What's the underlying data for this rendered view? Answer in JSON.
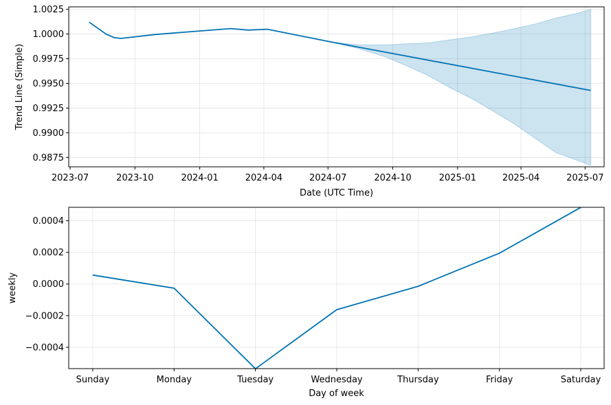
{
  "chart_data": [
    {
      "type": "line",
      "title": "",
      "xlabel": "Date (UTC Time)",
      "ylabel": "Trend Line (Simple)",
      "xlim": [
        "2023-06-29",
        "2025-07-28"
      ],
      "ylim": [
        0.98655,
        1.00275
      ],
      "xticks": [
        "2023-07-01",
        "2023-10-01",
        "2024-01-01",
        "2024-04-01",
        "2024-07-01",
        "2024-10-01",
        "2025-01-01",
        "2025-04-01",
        "2025-07-01"
      ],
      "xtick_labels": [
        "2023-07",
        "2023-10",
        "2024-01",
        "2024-04",
        "2024-07",
        "2024-10",
        "2025-01",
        "2025-04",
        "2025-07"
      ],
      "yticks": [
        0.9875,
        0.99,
        0.9925,
        0.995,
        0.9975,
        1.0,
        1.0025
      ],
      "ytick_labels": [
        "0.9875",
        "0.9900",
        "0.9925",
        "0.9950",
        "0.9975",
        "1.0000",
        "1.0025"
      ],
      "grid": true,
      "series": [
        {
          "color": "#0072B2",
          "points": [
            [
              "2023-07-28",
              1.0012
            ],
            [
              "2023-08-21",
              1.0
            ],
            [
              "2023-09-01",
              0.99965
            ],
            [
              "2023-09-11",
              0.99955
            ],
            [
              "2023-10-29",
              0.99995
            ],
            [
              "2024-02-14",
              1.00055
            ],
            [
              "2024-03-10",
              1.0004
            ],
            [
              "2024-04-06",
              1.00048
            ],
            [
              "2024-07-06",
              0.99918
            ],
            [
              "2025-07-09",
              0.99428
            ]
          ]
        }
      ],
      "band": {
        "color": "#0072B2",
        "upper": [
          [
            "2024-07-06",
            0.99918
          ],
          [
            "2024-08-15",
            0.9989
          ],
          [
            "2024-09-20",
            0.9989
          ],
          [
            "2024-10-20",
            0.999
          ],
          [
            "2024-11-20",
            0.9991
          ],
          [
            "2024-12-20",
            0.9994
          ],
          [
            "2025-01-20",
            0.9997
          ],
          [
            "2025-02-20",
            1.0001
          ],
          [
            "2025-03-20",
            1.0005
          ],
          [
            "2025-04-20",
            1.001
          ],
          [
            "2025-05-20",
            1.0016
          ],
          [
            "2025-06-20",
            1.0021
          ],
          [
            "2025-07-09",
            1.0025
          ]
        ],
        "lower": [
          [
            "2024-07-06",
            0.99918
          ],
          [
            "2024-08-15",
            0.9985
          ],
          [
            "2024-09-20",
            0.9977
          ],
          [
            "2024-10-20",
            0.9968
          ],
          [
            "2024-11-20",
            0.9958
          ],
          [
            "2024-12-20",
            0.9946
          ],
          [
            "2025-01-20",
            0.9935
          ],
          [
            "2025-02-20",
            0.9922
          ],
          [
            "2025-03-20",
            0.991
          ],
          [
            "2025-04-20",
            0.9895
          ],
          [
            "2025-05-20",
            0.988
          ],
          [
            "2025-06-20",
            0.9872
          ],
          [
            "2025-07-09",
            0.9867
          ]
        ]
      }
    },
    {
      "type": "line",
      "title": "",
      "xlabel": "Day of week",
      "ylabel": "weekly",
      "categories": [
        "Sunday",
        "Monday",
        "Tuesday",
        "Wednesday",
        "Thursday",
        "Friday",
        "Saturday"
      ],
      "ylim": [
        -0.000535,
        0.000485
      ],
      "yticks": [
        -0.0004,
        -0.0002,
        0.0,
        0.0002,
        0.0004
      ],
      "ytick_labels": [
        "−0.0004",
        "−0.0002",
        "0.0000",
        "0.0002",
        "0.0004"
      ],
      "grid": true,
      "series": [
        {
          "color": "#0072B2",
          "values": [
            5.66e-05,
            -2.62e-05,
            -0.000536,
            -0.000162,
            -1.47e-05,
            0.000195,
            0.000484
          ]
        }
      ]
    }
  ]
}
